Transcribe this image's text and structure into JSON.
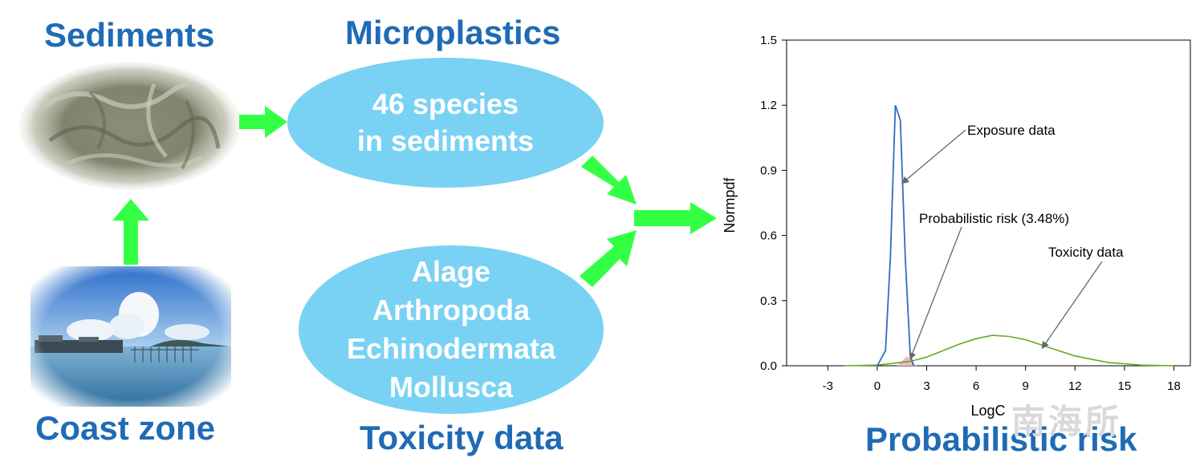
{
  "headings": {
    "sediments": "Sediments",
    "microplastics": "Microplastics",
    "coast_zone": "Coast zone",
    "toxicity_data": "Toxicity data",
    "probabilistic_risk": "Probabilistic risk"
  },
  "ellipse_top": {
    "lines": [
      "46 species",
      "in sediments"
    ]
  },
  "ellipse_bottom": {
    "lines": [
      "Alage",
      "Arthropoda",
      "Echinodermata",
      "Mollusca"
    ]
  },
  "colors": {
    "heading": "#1f6bb5",
    "ellipse": "#79d2f3",
    "arrow": "#33ff44",
    "exposure_curve": "#2e6fbd",
    "toxicity_curve": "#66aa22",
    "risk_fill": "#f4b6c8"
  },
  "watermark": "南海所",
  "chart_data": {
    "type": "line",
    "xlabel": "LogC",
    "ylabel": "Normpdf",
    "xlim": [
      -5.5,
      19
    ],
    "ylim": [
      0,
      1.5
    ],
    "xticks": [
      -3,
      0,
      3,
      6,
      9,
      12,
      15,
      18
    ],
    "yticks": [
      0.0,
      0.3,
      0.6,
      0.9,
      1.2,
      1.5
    ],
    "ytick_labels": [
      "0.0",
      "0.3",
      "0.6",
      "0.9",
      "1.2",
      "1.5"
    ],
    "series": [
      {
        "key": "exposure",
        "x": [
          0.0,
          0.5,
          0.8,
          1.1,
          1.4,
          1.7,
          2.0,
          2.2
        ],
        "y": [
          0.0,
          0.07,
          0.5,
          1.2,
          1.13,
          0.5,
          0.05,
          0.0
        ]
      },
      {
        "key": "toxicity",
        "x": [
          -2,
          0,
          2,
          3,
          4,
          5,
          6,
          7,
          8,
          9,
          10,
          11,
          12,
          14,
          16,
          18
        ],
        "y": [
          0.0,
          0.003,
          0.02,
          0.04,
          0.07,
          0.1,
          0.125,
          0.14,
          0.135,
          0.12,
          0.095,
          0.07,
          0.045,
          0.015,
          0.003,
          0.0
        ]
      }
    ],
    "overlap_region": {
      "x": [
        1.2,
        2.4
      ]
    },
    "annotations": [
      {
        "label": "Exposure data",
        "tip": [
          1.5,
          0.84
        ]
      },
      {
        "label": "Probabilistic risk (3.48%)",
        "tip": [
          2.0,
          0.03
        ]
      },
      {
        "label": "Toxicity data",
        "tip": [
          10.0,
          0.08
        ]
      }
    ]
  }
}
